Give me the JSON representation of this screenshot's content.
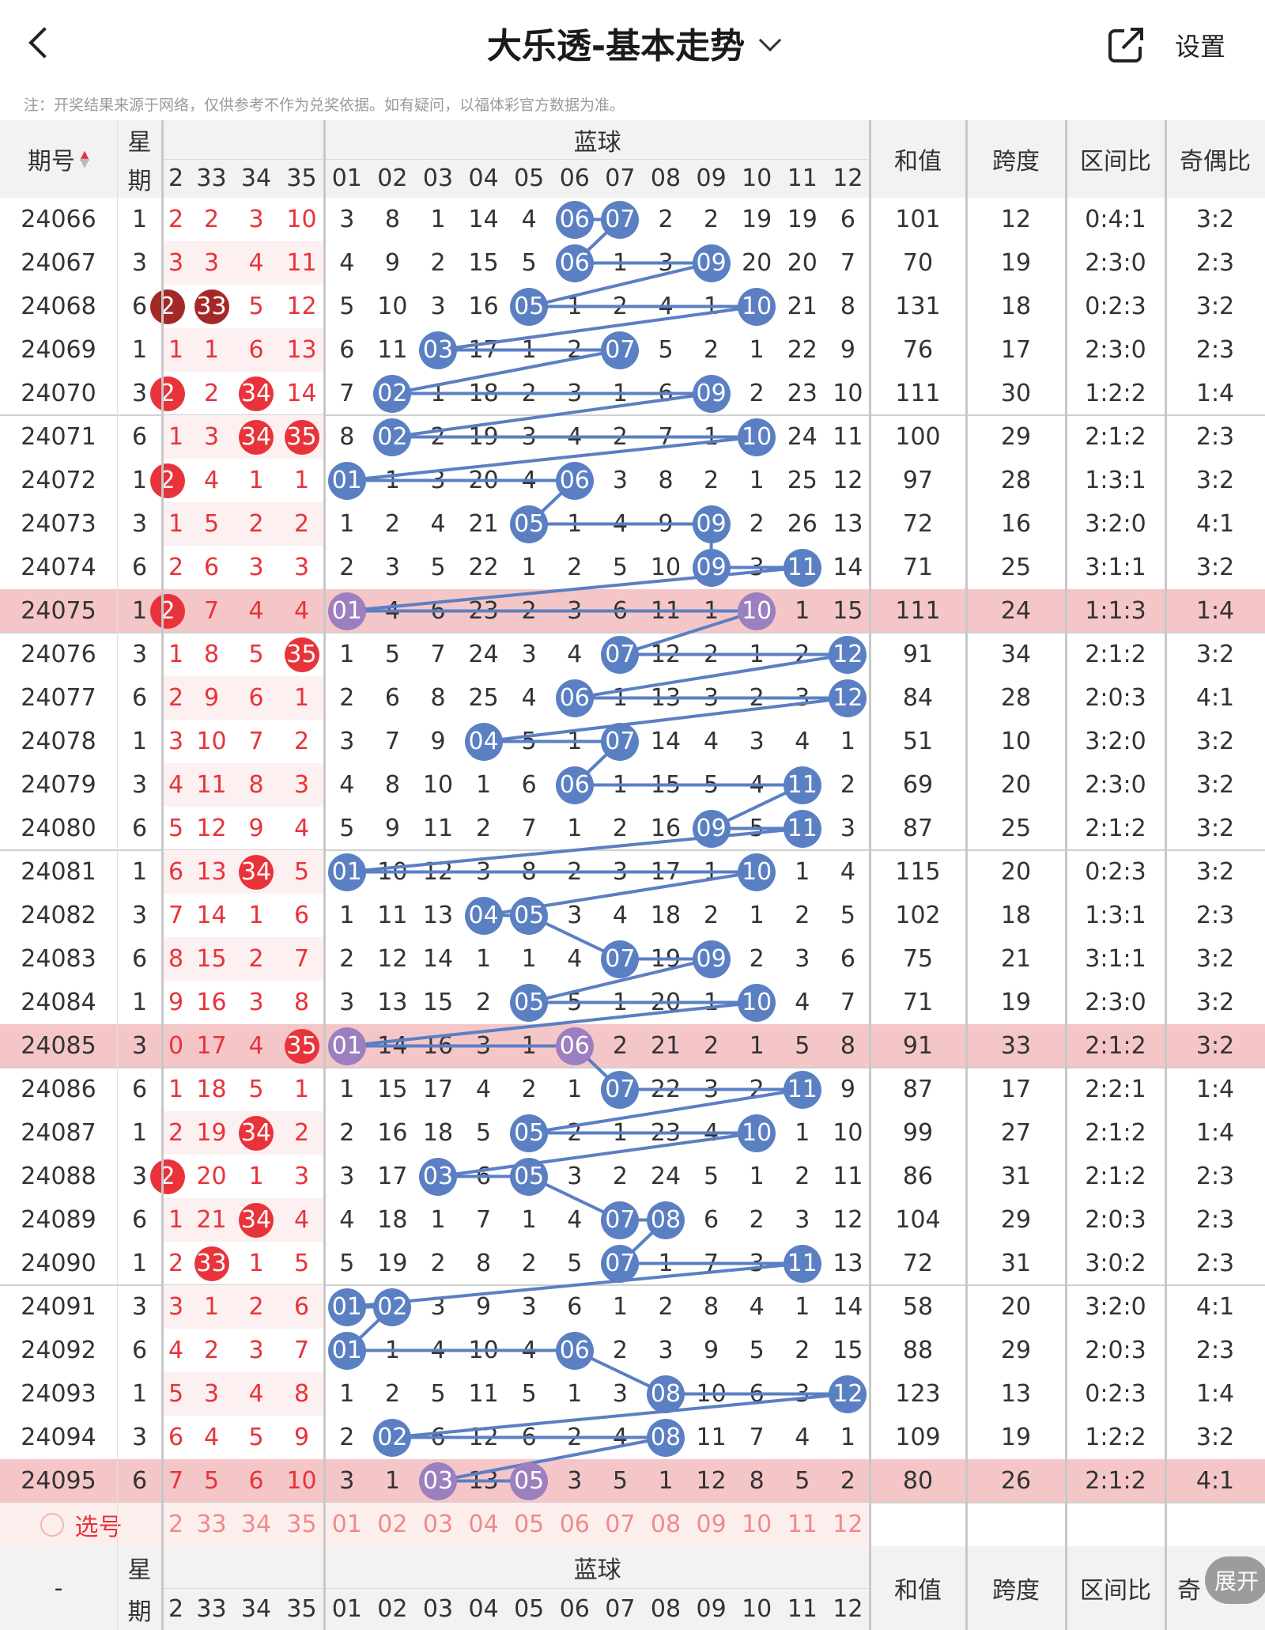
{
  "header": {
    "title": "大乐透-基本走势",
    "settings_label": "设置",
    "notice": "注：开奖结果来源于网络，仅供参考不作为兑奖依据。如有疑问，以福体彩官方数据为准。"
  },
  "table_header": {
    "issue_label": "期号",
    "week_label_1": "星",
    "week_label_2": "期",
    "blue_label": "蓝球",
    "sum_label": "和值",
    "span_label": "跨度",
    "zone_label": "区间比",
    "odd_even_label": "奇偶比",
    "red_cols": [
      "2",
      "33",
      "34",
      "35"
    ],
    "blue_cols": [
      "01",
      "02",
      "03",
      "04",
      "05",
      "06",
      "07",
      "08",
      "09",
      "10",
      "11",
      "12"
    ]
  },
  "rows": [
    {
      "issue": "24066",
      "week": "1",
      "red": [
        "2",
        "2",
        "3",
        "10"
      ],
      "hits": [],
      "blue": [
        "3",
        "8",
        "1",
        "14",
        "4",
        "06",
        "07",
        "2",
        "2",
        "19",
        "19",
        "6"
      ],
      "sum": "101",
      "span": "12",
      "zone": "0:4:1",
      "oe": "3:2"
    },
    {
      "issue": "24067",
      "week": "3",
      "red": [
        "3",
        "3",
        "4",
        "11"
      ],
      "hits": [],
      "blue": [
        "4",
        "9",
        "2",
        "15",
        "5",
        "06",
        "1",
        "3",
        "09",
        "20",
        "20",
        "7"
      ],
      "sum": "70",
      "span": "19",
      "zone": "2:3:0",
      "oe": "2:3"
    },
    {
      "issue": "24068",
      "week": "6",
      "red": [
        "2",
        "33",
        "5",
        "12"
      ],
      "hits": [
        0,
        1
      ],
      "dark": [
        0,
        1
      ],
      "blue": [
        "5",
        "10",
        "3",
        "16",
        "05",
        "1",
        "2",
        "4",
        "1",
        "10",
        "21",
        "8"
      ],
      "sum": "131",
      "span": "18",
      "zone": "0:2:3",
      "oe": "3:2"
    },
    {
      "issue": "24069",
      "week": "1",
      "red": [
        "1",
        "1",
        "6",
        "13"
      ],
      "hits": [],
      "blue": [
        "6",
        "11",
        "03",
        "17",
        "1",
        "2",
        "07",
        "5",
        "2",
        "1",
        "22",
        "9"
      ],
      "sum": "76",
      "span": "17",
      "zone": "2:3:0",
      "oe": "2:3"
    },
    {
      "issue": "24070",
      "week": "3",
      "red": [
        "2",
        "2",
        "34",
        "14"
      ],
      "hits": [
        0,
        2
      ],
      "blue": [
        "7",
        "02",
        "1",
        "18",
        "2",
        "3",
        "1",
        "6",
        "09",
        "2",
        "23",
        "10"
      ],
      "sum": "111",
      "span": "30",
      "zone": "1:2:2",
      "oe": "1:4"
    },
    {
      "issue": "24071",
      "week": "6",
      "red": [
        "1",
        "3",
        "34",
        "35"
      ],
      "hits": [
        2,
        3
      ],
      "blue": [
        "8",
        "02",
        "2",
        "19",
        "3",
        "4",
        "2",
        "7",
        "1",
        "10",
        "24",
        "11"
      ],
      "sum": "100",
      "span": "29",
      "zone": "2:1:2",
      "oe": "2:3"
    },
    {
      "issue": "24072",
      "week": "1",
      "red": [
        "2",
        "4",
        "1",
        "1"
      ],
      "hits": [
        0
      ],
      "blue": [
        "01",
        "1",
        "3",
        "20",
        "4",
        "06",
        "3",
        "8",
        "2",
        "1",
        "25",
        "12"
      ],
      "sum": "97",
      "span": "28",
      "zone": "1:3:1",
      "oe": "3:2"
    },
    {
      "issue": "24073",
      "week": "3",
      "red": [
        "1",
        "5",
        "2",
        "2"
      ],
      "hits": [],
      "blue": [
        "1",
        "2",
        "4",
        "21",
        "05",
        "1",
        "4",
        "9",
        "09",
        "2",
        "26",
        "13"
      ],
      "sum": "72",
      "span": "16",
      "zone": "3:2:0",
      "oe": "4:1"
    },
    {
      "issue": "24074",
      "week": "6",
      "red": [
        "2",
        "6",
        "3",
        "3"
      ],
      "hits": [],
      "blue": [
        "2",
        "3",
        "5",
        "22",
        "1",
        "2",
        "5",
        "10",
        "09",
        "3",
        "11",
        "14"
      ],
      "sum": "71",
      "span": "25",
      "zone": "3:1:1",
      "oe": "3:2"
    },
    {
      "issue": "24075",
      "week": "1",
      "red": [
        "2",
        "7",
        "4",
        "4"
      ],
      "hits": [
        0
      ],
      "hl": true,
      "blue": [
        "01",
        "4",
        "6",
        "23",
        "2",
        "3",
        "6",
        "11",
        "1",
        "10",
        "1",
        "15"
      ],
      "sum": "111",
      "span": "24",
      "zone": "1:1:3",
      "oe": "1:4"
    },
    {
      "issue": "24076",
      "week": "3",
      "red": [
        "1",
        "8",
        "5",
        "35"
      ],
      "hits": [
        3
      ],
      "blue": [
        "1",
        "5",
        "7",
        "24",
        "3",
        "4",
        "07",
        "12",
        "2",
        "1",
        "2",
        "12"
      ],
      "sum": "91",
      "span": "34",
      "zone": "2:1:2",
      "oe": "3:2"
    },
    {
      "issue": "24077",
      "week": "6",
      "red": [
        "2",
        "9",
        "6",
        "1"
      ],
      "hits": [],
      "blue": [
        "2",
        "6",
        "8",
        "25",
        "4",
        "06",
        "1",
        "13",
        "3",
        "2",
        "3",
        "12"
      ],
      "sum": "84",
      "span": "28",
      "zone": "2:0:3",
      "oe": "4:1"
    },
    {
      "issue": "24078",
      "week": "1",
      "red": [
        "3",
        "10",
        "7",
        "2"
      ],
      "hits": [],
      "blue": [
        "3",
        "7",
        "9",
        "04",
        "5",
        "1",
        "07",
        "14",
        "4",
        "3",
        "4",
        "1"
      ],
      "sum": "51",
      "span": "10",
      "zone": "3:2:0",
      "oe": "3:2"
    },
    {
      "issue": "24079",
      "week": "3",
      "red": [
        "4",
        "11",
        "8",
        "3"
      ],
      "hits": [],
      "blue": [
        "4",
        "8",
        "10",
        "1",
        "6",
        "06",
        "1",
        "15",
        "5",
        "4",
        "11",
        "2"
      ],
      "sum": "69",
      "span": "20",
      "zone": "2:3:0",
      "oe": "3:2"
    },
    {
      "issue": "24080",
      "week": "6",
      "red": [
        "5",
        "12",
        "9",
        "4"
      ],
      "hits": [],
      "blue": [
        "5",
        "9",
        "11",
        "2",
        "7",
        "1",
        "2",
        "16",
        "09",
        "5",
        "11",
        "3"
      ],
      "sum": "87",
      "span": "25",
      "zone": "2:1:2",
      "oe": "3:2"
    },
    {
      "issue": "24081",
      "week": "1",
      "red": [
        "6",
        "13",
        "34",
        "5"
      ],
      "hits": [
        2
      ],
      "blue": [
        "01",
        "10",
        "12",
        "3",
        "8",
        "2",
        "3",
        "17",
        "1",
        "10",
        "1",
        "4"
      ],
      "sum": "115",
      "span": "20",
      "zone": "0:2:3",
      "oe": "3:2"
    },
    {
      "issue": "24082",
      "week": "3",
      "red": [
        "7",
        "14",
        "1",
        "6"
      ],
      "hits": [],
      "blue": [
        "1",
        "11",
        "13",
        "04",
        "05",
        "3",
        "4",
        "18",
        "2",
        "1",
        "2",
        "5"
      ],
      "sum": "102",
      "span": "18",
      "zone": "1:3:1",
      "oe": "2:3"
    },
    {
      "issue": "24083",
      "week": "6",
      "red": [
        "8",
        "15",
        "2",
        "7"
      ],
      "hits": [],
      "blue": [
        "2",
        "12",
        "14",
        "1",
        "1",
        "4",
        "07",
        "19",
        "09",
        "2",
        "3",
        "6"
      ],
      "sum": "75",
      "span": "21",
      "zone": "3:1:1",
      "oe": "3:2"
    },
    {
      "issue": "24084",
      "week": "1",
      "red": [
        "9",
        "16",
        "3",
        "8"
      ],
      "hits": [],
      "blue": [
        "3",
        "13",
        "15",
        "2",
        "05",
        "5",
        "1",
        "20",
        "1",
        "10",
        "4",
        "7"
      ],
      "sum": "71",
      "span": "19",
      "zone": "2:3:0",
      "oe": "3:2"
    },
    {
      "issue": "24085",
      "week": "3",
      "red": [
        "0",
        "17",
        "4",
        "35"
      ],
      "hits": [
        3
      ],
      "hl": true,
      "blue": [
        "01",
        "14",
        "16",
        "3",
        "1",
        "06",
        "2",
        "21",
        "2",
        "1",
        "5",
        "8"
      ],
      "sum": "91",
      "span": "33",
      "zone": "2:1:2",
      "oe": "3:2"
    },
    {
      "issue": "24086",
      "week": "6",
      "red": [
        "1",
        "18",
        "5",
        "1"
      ],
      "hits": [],
      "blue": [
        "1",
        "15",
        "17",
        "4",
        "2",
        "1",
        "07",
        "22",
        "3",
        "2",
        "11",
        "9"
      ],
      "sum": "87",
      "span": "17",
      "zone": "2:2:1",
      "oe": "1:4"
    },
    {
      "issue": "24087",
      "week": "1",
      "red": [
        "2",
        "19",
        "34",
        "2"
      ],
      "hits": [
        2
      ],
      "blue": [
        "2",
        "16",
        "18",
        "5",
        "05",
        "2",
        "1",
        "23",
        "4",
        "10",
        "1",
        "10"
      ],
      "sum": "99",
      "span": "27",
      "zone": "2:1:2",
      "oe": "1:4"
    },
    {
      "issue": "24088",
      "week": "3",
      "red": [
        "2",
        "20",
        "1",
        "3"
      ],
      "hits": [
        0
      ],
      "blue": [
        "3",
        "17",
        "03",
        "6",
        "05",
        "3",
        "2",
        "24",
        "5",
        "1",
        "2",
        "11"
      ],
      "sum": "86",
      "span": "31",
      "zone": "2:1:2",
      "oe": "2:3"
    },
    {
      "issue": "24089",
      "week": "6",
      "red": [
        "1",
        "21",
        "34",
        "4"
      ],
      "hits": [
        2
      ],
      "blue": [
        "4",
        "18",
        "1",
        "7",
        "1",
        "4",
        "07",
        "08",
        "6",
        "2",
        "3",
        "12"
      ],
      "sum": "104",
      "span": "29",
      "zone": "2:0:3",
      "oe": "2:3"
    },
    {
      "issue": "24090",
      "week": "1",
      "red": [
        "2",
        "33",
        "1",
        "5"
      ],
      "hits": [
        1
      ],
      "blue": [
        "5",
        "19",
        "2",
        "8",
        "2",
        "5",
        "07",
        "1",
        "7",
        "3",
        "11",
        "13"
      ],
      "sum": "72",
      "span": "31",
      "zone": "3:0:2",
      "oe": "2:3"
    },
    {
      "issue": "24091",
      "week": "3",
      "red": [
        "3",
        "1",
        "2",
        "6"
      ],
      "hits": [],
      "blue": [
        "01",
        "02",
        "3",
        "9",
        "3",
        "6",
        "1",
        "2",
        "8",
        "4",
        "1",
        "14"
      ],
      "sum": "58",
      "span": "20",
      "zone": "3:2:0",
      "oe": "4:1"
    },
    {
      "issue": "24092",
      "week": "6",
      "red": [
        "4",
        "2",
        "3",
        "7"
      ],
      "hits": [],
      "blue": [
        "01",
        "1",
        "4",
        "10",
        "4",
        "06",
        "2",
        "3",
        "9",
        "5",
        "2",
        "15"
      ],
      "sum": "88",
      "span": "29",
      "zone": "2:0:3",
      "oe": "2:3"
    },
    {
      "issue": "24093",
      "week": "1",
      "red": [
        "5",
        "3",
        "4",
        "8"
      ],
      "hits": [],
      "blue": [
        "1",
        "2",
        "5",
        "11",
        "5",
        "1",
        "3",
        "08",
        "10",
        "6",
        "3",
        "12"
      ],
      "sum": "123",
      "span": "13",
      "zone": "0:2:3",
      "oe": "1:4"
    },
    {
      "issue": "24094",
      "week": "3",
      "red": [
        "6",
        "4",
        "5",
        "9"
      ],
      "hits": [],
      "blue": [
        "2",
        "02",
        "6",
        "12",
        "6",
        "2",
        "4",
        "08",
        "11",
        "7",
        "4",
        "1"
      ],
      "sum": "109",
      "span": "19",
      "zone": "1:2:2",
      "oe": "3:2"
    },
    {
      "issue": "24095",
      "week": "6",
      "red": [
        "7",
        "5",
        "6",
        "10"
      ],
      "hits": [],
      "hl": true,
      "blue": [
        "3",
        "1",
        "03",
        "13",
        "05",
        "3",
        "5",
        "1",
        "12",
        "8",
        "5",
        "2"
      ],
      "sum": "80",
      "span": "26",
      "zone": "2:1:2",
      "oe": "4:1"
    }
  ],
  "blue_hits": [
    [
      5,
      6
    ],
    [
      5,
      8
    ],
    [
      4,
      9
    ],
    [
      2,
      6
    ],
    [
      1,
      8
    ],
    [
      1,
      9
    ],
    [
      0,
      5
    ],
    [
      4,
      8
    ],
    [
      8,
      10
    ],
    [
      0,
      9
    ],
    [
      6,
      11
    ],
    [
      5,
      11
    ],
    [
      3,
      6
    ],
    [
      5,
      10
    ],
    [
      8,
      10
    ],
    [
      0,
      9
    ],
    [
      3,
      4
    ],
    [
      6,
      8
    ],
    [
      4,
      9
    ],
    [
      0,
      5
    ],
    [
      6,
      10
    ],
    [
      4,
      9
    ],
    [
      2,
      4
    ],
    [
      6,
      7
    ],
    [
      6,
      10
    ],
    [
      0,
      1
    ],
    [
      0,
      5
    ],
    [
      7,
      11
    ],
    [
      1,
      7
    ],
    [
      2,
      4
    ]
  ],
  "footer": {
    "select_label": "选号",
    "bottom_dash": "-",
    "expand_label": "展开",
    "partial_oe": "奇"
  },
  "colors": {
    "blue_ball": "#5a7fc3",
    "red_ball": "#e8333a",
    "highlight_row": "#f5c6c8",
    "red_text": "#e8333a"
  }
}
